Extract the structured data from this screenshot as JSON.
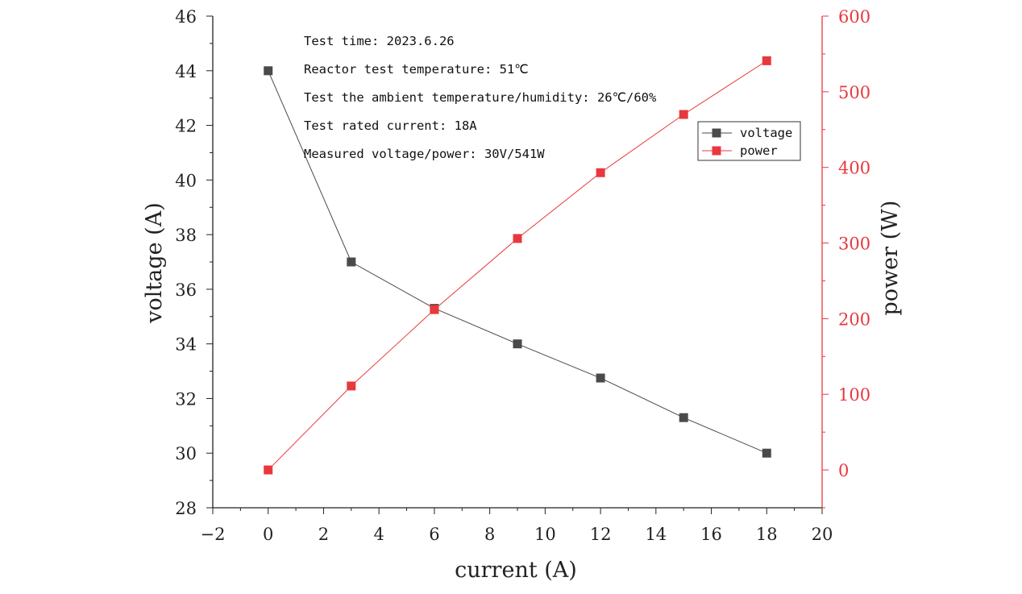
{
  "chart_data": {
    "type": "line",
    "xlabel": "current (A)",
    "ylabel": "voltage (A)",
    "y2label": "power (W)",
    "xlim": [
      -2,
      20
    ],
    "ylim": [
      28,
      46
    ],
    "y2lim": [
      -50,
      600
    ],
    "xticks": [
      -2,
      0,
      2,
      4,
      6,
      8,
      10,
      12,
      14,
      16,
      18,
      20
    ],
    "yticks": [
      28,
      30,
      32,
      34,
      36,
      38,
      40,
      42,
      44,
      46
    ],
    "y2ticks": [
      0,
      100,
      200,
      300,
      400,
      500,
      600
    ],
    "x": [
      0,
      3,
      6,
      9,
      12,
      15,
      18
    ],
    "series": [
      {
        "name": "voltage",
        "axis": "left",
        "color": "#4a4a4a",
        "values": [
          44,
          37,
          35.3,
          34,
          32.75,
          31.3,
          30
        ]
      },
      {
        "name": "power",
        "axis": "right",
        "color": "#e8383d",
        "values": [
          0,
          111,
          212,
          306,
          393,
          470,
          541
        ]
      }
    ],
    "legend": [
      "voltage",
      "power"
    ],
    "legend_position": "upper-right",
    "annotations": [
      "Test time: 2023.6.26",
      "Reactor test temperature: 51℃",
      "Test the ambient temperature/humidity: 26℃/60%",
      "Test rated current: 18A",
      "Measured voltage/power: 30V/541W"
    ]
  }
}
